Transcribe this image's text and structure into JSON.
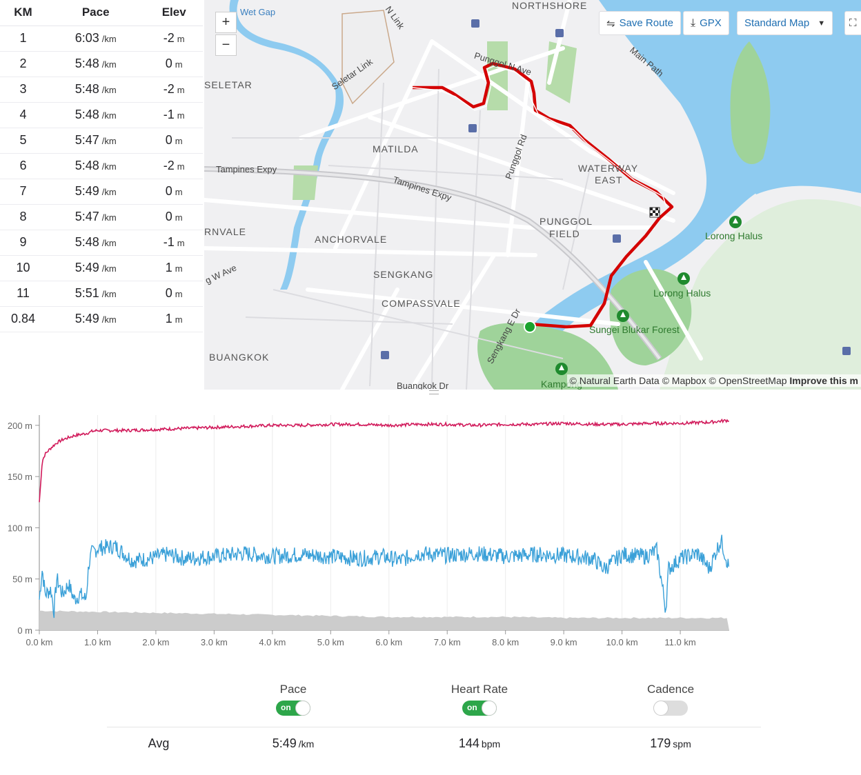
{
  "splits": {
    "headers": [
      "KM",
      "Pace",
      "Elev"
    ],
    "pace_unit": "/km",
    "elev_unit": "m",
    "rows": [
      {
        "km": "1",
        "pace": "6:03",
        "elev": "-2"
      },
      {
        "km": "2",
        "pace": "5:48",
        "elev": "0"
      },
      {
        "km": "3",
        "pace": "5:48",
        "elev": "-2"
      },
      {
        "km": "4",
        "pace": "5:48",
        "elev": "-1"
      },
      {
        "km": "5",
        "pace": "5:47",
        "elev": "0"
      },
      {
        "km": "6",
        "pace": "5:48",
        "elev": "-2"
      },
      {
        "km": "7",
        "pace": "5:49",
        "elev": "0"
      },
      {
        "km": "8",
        "pace": "5:47",
        "elev": "0"
      },
      {
        "km": "9",
        "pace": "5:48",
        "elev": "-1"
      },
      {
        "km": "10",
        "pace": "5:49",
        "elev": "1"
      },
      {
        "km": "11",
        "pace": "5:51",
        "elev": "0"
      },
      {
        "km": "0.84",
        "pace": "5:49",
        "elev": "1"
      }
    ]
  },
  "map": {
    "toolbar": {
      "save_route": "Save Route",
      "gpx": "GPX",
      "map_style": "Standard Map"
    },
    "zoom_in": "+",
    "zoom_out": "−",
    "areas": [
      "NORTHSHORE",
      "SELETAR",
      "MATILDA",
      "WATERWAY",
      "EAST",
      "PUNGGOL",
      "FIELD",
      "RNVALE",
      "ANCHORVALE",
      "SENGKANG",
      "COMPASSVALE",
      "BUANGKOK"
    ],
    "roads": [
      "Wet Gap",
      "N Link",
      "Punggol N Ave",
      "Seletar Link",
      "Main Path",
      "Tampines Expy",
      "Tampines Expy",
      "Punggol Rd",
      "g W Ave",
      "Sengkang E Dr",
      "Buangkok Dr"
    ],
    "parks": [
      "Lorong Halus",
      "Lorong Halus",
      "Sungei Blukar Forest",
      "Kampong"
    ],
    "attribution": "© Natural Earth Data © Mapbox © OpenStreetMap",
    "attribution_link": "Improve this m"
  },
  "chart_data": {
    "type": "line",
    "x_unit": "km",
    "xlim": [
      0,
      11.84
    ],
    "ylim": [
      0,
      210
    ],
    "x_ticks": [
      "0.0 km",
      "1.0 km",
      "2.0 km",
      "3.0 km",
      "4.0 km",
      "5.0 km",
      "6.0 km",
      "7.0 km",
      "8.0 km",
      "9.0 km",
      "10.0 km",
      "11.0 km"
    ],
    "y_ticks": [
      "0 m",
      "50 m",
      "100 m",
      "150 m",
      "200 m"
    ],
    "series": [
      {
        "color": "#d1195a",
        "x": [
          0,
          0.05,
          0.1,
          0.2,
          0.3,
          0.4,
          0.5,
          0.6,
          0.7,
          0.8,
          0.9,
          1.0,
          1.5,
          2.0,
          2.5,
          3.0,
          3.5,
          4.0,
          4.5,
          5.0,
          5.5,
          6.0,
          6.5,
          7.0,
          7.5,
          8.0,
          8.5,
          9.0,
          9.5,
          10.0,
          10.5,
          11.0,
          11.5,
          11.84
        ],
        "values": [
          125,
          165,
          172,
          178,
          183,
          186,
          188,
          190,
          191,
          192,
          194,
          195,
          195,
          196,
          197,
          198,
          199,
          200,
          200,
          201,
          201,
          200,
          201,
          201,
          200,
          201,
          201,
          202,
          201,
          201,
          202,
          202,
          203,
          205
        ]
      },
      {
        "color": "#3aa0d8",
        "x": [
          0,
          0.05,
          0.1,
          0.2,
          0.25,
          0.3,
          0.4,
          0.5,
          0.6,
          0.7,
          0.8,
          0.85,
          0.9,
          1.0,
          1.3,
          1.6,
          1.9,
          2.2,
          2.5,
          3.0,
          3.5,
          4.0,
          4.5,
          5.0,
          5.5,
          5.9,
          6.2,
          6.5,
          7.0,
          7.5,
          8.0,
          8.5,
          9.0,
          9.5,
          9.7,
          10.0,
          10.4,
          10.6,
          10.75,
          10.8,
          11.0,
          11.3,
          11.5,
          11.6,
          11.7,
          11.84
        ],
        "values": [
          30,
          60,
          35,
          40,
          18,
          50,
          35,
          45,
          30,
          35,
          30,
          65,
          75,
          80,
          82,
          68,
          70,
          74,
          70,
          72,
          75,
          72,
          74,
          72,
          70,
          72,
          68,
          75,
          73,
          75,
          72,
          74,
          73,
          70,
          60,
          74,
          72,
          78,
          20,
          60,
          70,
          75,
          60,
          75,
          88,
          60
        ]
      },
      {
        "color": "#cccccc",
        "x": [
          0,
          1,
          2,
          3,
          4,
          5,
          6,
          7,
          8,
          9,
          10,
          11,
          11.84
        ],
        "values": [
          19,
          18,
          17,
          16,
          15,
          14,
          13,
          13,
          13,
          12,
          12,
          12,
          12
        ]
      }
    ]
  },
  "summary": {
    "pace": {
      "title": "Pace",
      "toggle": "on",
      "avg": "5:49",
      "unit": "/km"
    },
    "heart_rate": {
      "title": "Heart Rate",
      "toggle": "on",
      "avg": "144",
      "unit": "bpm"
    },
    "cadence": {
      "title": "Cadence",
      "avg": "179",
      "unit": "spm"
    },
    "avg_label": "Avg"
  }
}
